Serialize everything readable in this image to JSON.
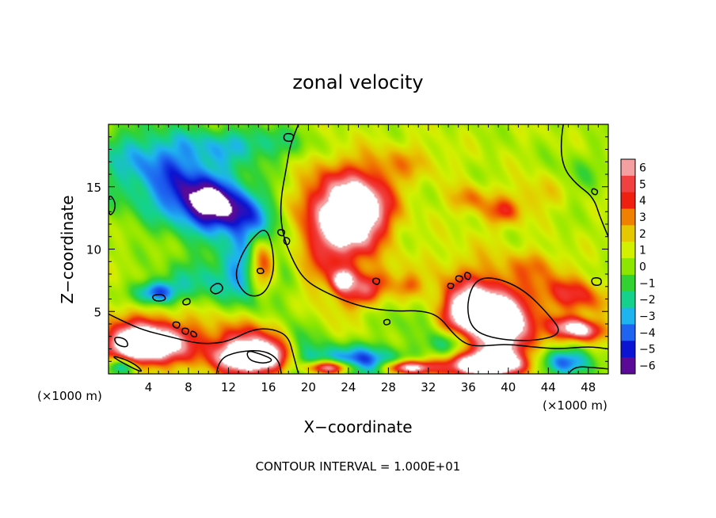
{
  "chart_data": {
    "type": "heatmap",
    "title": "zonal velocity",
    "xlabel": "X−coordinate",
    "ylabel": "Z−coordinate",
    "x_unit_left": "(×1000 m)",
    "x_unit_right": "(×1000 m)",
    "footer": "CONTOUR INTERVAL = 1.000E+01",
    "xlim": [
      0,
      50
    ],
    "ylim": [
      0,
      20
    ],
    "x_ticks": [
      4,
      8,
      12,
      16,
      20,
      24,
      28,
      32,
      36,
      40,
      44,
      48
    ],
    "x_tick_labels": [
      "4",
      "8",
      "12",
      "16",
      "20",
      "24",
      "28",
      "32",
      "36",
      "40",
      "44",
      "48"
    ],
    "y_ticks": [
      5,
      10,
      15
    ],
    "y_tick_labels": [
      "5",
      "10",
      "15"
    ],
    "colorbar": {
      "min": -6,
      "max": 6,
      "levels": [
        6,
        5,
        4,
        3,
        2,
        1,
        0,
        -1,
        -2,
        -3,
        -4,
        -5,
        -6
      ],
      "labels": [
        "6",
        "5",
        "4",
        "3",
        "2",
        "1",
        "0",
        "−1",
        "−2",
        "−3",
        "−4",
        "−5",
        "−6"
      ],
      "colors": [
        "#f4a0a0",
        "#f04040",
        "#f02010",
        "#f08000",
        "#e6c800",
        "#d2f000",
        "#8ce600",
        "#32d232",
        "#14d28c",
        "#1eb4f0",
        "#1e64f0",
        "#0a14d2",
        "#5a0a96"
      ]
    },
    "grid": false,
    "saturation_color": "#ffffff",
    "blobs": [
      {
        "x": 25,
        "y": 12.8,
        "rx": 3.6,
        "ry": 2.7,
        "rot": 35,
        "v": 6.2
      },
      {
        "x": 22.5,
        "y": 11.5,
        "rx": 5.5,
        "ry": 4.5,
        "rot": 40,
        "v": 3.5
      },
      {
        "x": 22.5,
        "y": 14,
        "rx": 3.5,
        "ry": 3,
        "rot": 0,
        "v": 2.5
      },
      {
        "x": 23.5,
        "y": 7.5,
        "rx": 1.2,
        "ry": 1,
        "rot": 0,
        "v": 6.2
      },
      {
        "x": 26,
        "y": 6.8,
        "rx": 3,
        "ry": 1.3,
        "rot": 20,
        "v": 3.5
      },
      {
        "x": 30,
        "y": 7,
        "rx": 1.3,
        "ry": 1,
        "rot": 0,
        "v": 2.5
      },
      {
        "x": 38.2,
        "y": 4.6,
        "rx": 3.5,
        "ry": 1.7,
        "rot": -20,
        "v": 8
      },
      {
        "x": 38.5,
        "y": 5,
        "rx": 5.5,
        "ry": 3.8,
        "rot": -20,
        "v": 4.5
      },
      {
        "x": 35,
        "y": 4.5,
        "rx": 2.5,
        "ry": 1.6,
        "rot": 0,
        "v": 3
      },
      {
        "x": 47,
        "y": 3.6,
        "rx": 2.5,
        "ry": 0.9,
        "rot": -5,
        "v": 7
      },
      {
        "x": 46.5,
        "y": 6.3,
        "rx": 4,
        "ry": 1.5,
        "rot": -10,
        "v": 3.5
      },
      {
        "x": 45,
        "y": 0.9,
        "rx": 3.5,
        "ry": 1.2,
        "rot": 0,
        "v": -5
      },
      {
        "x": 38,
        "y": 0.7,
        "rx": 4,
        "ry": 0.9,
        "rot": 0,
        "v": 8
      },
      {
        "x": 37.5,
        "y": 1.3,
        "rx": 5,
        "ry": 1.5,
        "rot": 0,
        "v": 3
      },
      {
        "x": 14.5,
        "y": 1.3,
        "rx": 3.5,
        "ry": 1.2,
        "rot": 0,
        "v": 8
      },
      {
        "x": 14.5,
        "y": 2.2,
        "rx": 5,
        "ry": 2.3,
        "rot": 0,
        "v": 4.5
      },
      {
        "x": 3.5,
        "y": 2.3,
        "rx": 3.5,
        "ry": 1.4,
        "rot": 0,
        "v": 8
      },
      {
        "x": 4,
        "y": 2.8,
        "rx": 5.5,
        "ry": 2.3,
        "rot": 0,
        "v": 4
      },
      {
        "x": 1.3,
        "y": 0.6,
        "rx": 1.6,
        "ry": 0.8,
        "rot": 0,
        "v": -5
      },
      {
        "x": 24.5,
        "y": 1,
        "rx": 6,
        "ry": 1.4,
        "rot": 0,
        "v": -5
      },
      {
        "x": 22,
        "y": 0.5,
        "rx": 2.5,
        "ry": 0.6,
        "rot": 0,
        "v": 8
      },
      {
        "x": 30,
        "y": 0.5,
        "rx": 2.5,
        "ry": 0.6,
        "rot": 0,
        "v": 8
      },
      {
        "x": 15.3,
        "y": 8.8,
        "rx": 1.6,
        "ry": 2.4,
        "rot": 10,
        "v": 8.5
      },
      {
        "x": 15,
        "y": 9,
        "rx": 2.8,
        "ry": 3.8,
        "rot": 10,
        "v": -5.5
      },
      {
        "x": 7,
        "y": 15,
        "rx": 9,
        "ry": 4,
        "rot": -15,
        "v": -3.5
      },
      {
        "x": 10.5,
        "y": 13.5,
        "rx": 4,
        "ry": 2,
        "rot": -10,
        "v": -5.5
      },
      {
        "x": 6,
        "y": 17.5,
        "rx": 6,
        "ry": 2.5,
        "rot": 0,
        "v": -1.5
      },
      {
        "x": 4.8,
        "y": 6.5,
        "rx": 2.2,
        "ry": 1,
        "rot": 0,
        "v": -5
      },
      {
        "x": 10,
        "y": 7.5,
        "rx": 4.5,
        "ry": 2,
        "rot": 0,
        "v": -2.5
      },
      {
        "x": 14.5,
        "y": 18.5,
        "rx": 6,
        "ry": 1.5,
        "rot": 0,
        "v": -2.5
      },
      {
        "x": 19,
        "y": 2.5,
        "rx": 2,
        "ry": 2.5,
        "rot": 0,
        "v": -3
      },
      {
        "x": 34,
        "y": 2.4,
        "rx": 2,
        "ry": 1.3,
        "rot": 0,
        "v": -4
      },
      {
        "x": 39.5,
        "y": 13,
        "rx": 2,
        "ry": 1.2,
        "rot": 0,
        "v": 3
      },
      {
        "x": 36,
        "y": 14,
        "rx": 2,
        "ry": 1.2,
        "rot": 0,
        "v": 2.5
      },
      {
        "x": 43,
        "y": 14.5,
        "rx": 3,
        "ry": 1.5,
        "rot": 0,
        "v": 1.5
      },
      {
        "x": 43,
        "y": 8.8,
        "rx": 3,
        "ry": 1.2,
        "rot": 0,
        "v": 1.5
      },
      {
        "x": 30,
        "y": 17,
        "rx": 4,
        "ry": 1.5,
        "rot": 0,
        "v": 1.5
      },
      {
        "x": 47,
        "y": 16,
        "rx": 3,
        "ry": 2,
        "rot": 0,
        "v": -1
      },
      {
        "x": 31,
        "y": 4.5,
        "rx": 3,
        "ry": 1.5,
        "rot": 0,
        "v": -1.5
      }
    ],
    "contours": [
      {
        "closed": false,
        "points": [
          [
            19,
            20
          ],
          [
            18.2,
            18.5
          ],
          [
            17.8,
            16.5
          ],
          [
            17.2,
            14
          ],
          [
            17.3,
            11.5
          ],
          [
            18.3,
            9.3
          ],
          [
            19.5,
            7.6
          ],
          [
            21.5,
            6.6
          ],
          [
            25,
            5.4
          ],
          [
            28.5,
            5
          ],
          [
            31,
            5.1
          ],
          [
            33,
            4.7
          ],
          [
            34.5,
            3.2
          ],
          [
            35.7,
            2.4
          ],
          [
            37,
            2.2
          ],
          [
            40,
            2.4
          ],
          [
            43,
            2.1
          ],
          [
            45.5,
            2
          ],
          [
            48,
            2.2
          ],
          [
            50,
            2
          ]
        ]
      },
      {
        "closed": false,
        "points": [
          [
            45.5,
            20
          ],
          [
            45.2,
            18.5
          ],
          [
            45.5,
            16.5
          ],
          [
            46.8,
            15.2
          ],
          [
            48.5,
            14.2
          ],
          [
            49.2,
            12.5
          ],
          [
            50,
            11
          ]
        ]
      },
      {
        "closed": true,
        "points": [
          [
            35.8,
            5.5
          ],
          [
            36.6,
            7.5
          ],
          [
            38.5,
            7.8
          ],
          [
            41.5,
            6.8
          ],
          [
            44,
            4.8
          ],
          [
            45.5,
            3.2
          ],
          [
            42.5,
            2.6
          ],
          [
            38.5,
            2.8
          ],
          [
            36.3,
            3.6
          ]
        ]
      },
      {
        "closed": true,
        "points": [
          [
            12.6,
            7.7
          ],
          [
            13.2,
            9.4
          ],
          [
            14.3,
            10.8
          ],
          [
            15.7,
            11.8
          ],
          [
            16.4,
            10.3
          ],
          [
            16.6,
            8.2
          ],
          [
            15.6,
            6.3
          ],
          [
            13.8,
            6.2
          ]
        ]
      },
      {
        "closed": false,
        "points": [
          [
            0,
            4.8
          ],
          [
            1.5,
            4.2
          ],
          [
            3.5,
            3.5
          ],
          [
            6,
            3
          ],
          [
            8.5,
            2.5
          ],
          [
            10,
            2.4
          ],
          [
            12,
            2.6
          ],
          [
            14.5,
            3.6
          ],
          [
            16.5,
            3.6
          ],
          [
            18,
            3
          ],
          [
            18.5,
            1.5
          ],
          [
            19,
            0
          ]
        ]
      },
      {
        "closed": false,
        "points": [
          [
            10.8,
            0
          ],
          [
            11,
            1.2
          ],
          [
            13,
            1.8
          ],
          [
            15.5,
            1.9
          ],
          [
            17,
            1.2
          ],
          [
            17.3,
            0
          ]
        ]
      },
      {
        "closed": true,
        "points": [
          [
            13.8,
            1.9
          ],
          [
            15.2,
            1.6
          ],
          [
            16.6,
            1.1
          ],
          [
            15.5,
            0.8
          ],
          [
            14,
            1.1
          ]
        ]
      },
      {
        "closed": false,
        "points": [
          [
            46,
            0
          ],
          [
            46.5,
            0.6
          ],
          [
            48.5,
            0.5
          ],
          [
            50,
            0.4
          ]
        ]
      },
      {
        "closed": true,
        "points": [
          [
            4.3,
            6.3
          ],
          [
            5.5,
            6.4
          ],
          [
            5.8,
            5.9
          ],
          [
            4.6,
            5.8
          ]
        ]
      },
      {
        "closed": true,
        "points": [
          [
            7.4,
            5.9
          ],
          [
            8.1,
            6.1
          ],
          [
            8.2,
            5.6
          ],
          [
            7.5,
            5.5
          ]
        ]
      },
      {
        "closed": true,
        "points": [
          [
            10,
            6.8
          ],
          [
            11,
            7.4
          ],
          [
            11.6,
            6.8
          ],
          [
            10.7,
            6.3
          ]
        ]
      },
      {
        "closed": true,
        "points": [
          [
            6.5,
            4.2
          ],
          [
            7.2,
            4.1
          ],
          [
            7,
            3.6
          ],
          [
            6.4,
            3.8
          ]
        ]
      },
      {
        "closed": true,
        "points": [
          [
            7.4,
            3.7
          ],
          [
            8.1,
            3.6
          ],
          [
            7.9,
            3.1
          ],
          [
            7.3,
            3.3
          ]
        ]
      },
      {
        "closed": true,
        "points": [
          [
            8.3,
            3.5
          ],
          [
            8.9,
            3.2
          ],
          [
            8.7,
            2.9
          ],
          [
            8.2,
            3.1
          ]
        ]
      },
      {
        "closed": true,
        "points": [
          [
            17,
            11.6
          ],
          [
            17.7,
            11.5
          ],
          [
            17.5,
            11
          ],
          [
            16.9,
            11.2
          ]
        ]
      },
      {
        "closed": true,
        "points": [
          [
            17.6,
            11
          ],
          [
            18.2,
            10.8
          ],
          [
            18,
            10.3
          ],
          [
            17.5,
            10.5
          ]
        ]
      },
      {
        "closed": true,
        "points": [
          [
            17.6,
            19.3
          ],
          [
            18.6,
            19.2
          ],
          [
            18.4,
            18.6
          ],
          [
            17.5,
            18.7
          ]
        ]
      },
      {
        "closed": true,
        "points": [
          [
            26.5,
            7.7
          ],
          [
            27.2,
            7.6
          ],
          [
            27,
            7.1
          ],
          [
            26.4,
            7.3
          ]
        ]
      },
      {
        "closed": true,
        "points": [
          [
            34.8,
            7.9
          ],
          [
            35.5,
            7.8
          ],
          [
            35.3,
            7.3
          ],
          [
            34.7,
            7.5
          ]
        ]
      },
      {
        "closed": true,
        "points": [
          [
            35.7,
            8.2
          ],
          [
            36.3,
            8
          ],
          [
            36.1,
            7.5
          ],
          [
            35.6,
            7.7
          ]
        ]
      },
      {
        "closed": true,
        "points": [
          [
            34,
            7.3
          ],
          [
            34.6,
            7.2
          ],
          [
            34.4,
            6.8
          ],
          [
            33.9,
            6.9
          ]
        ]
      },
      {
        "closed": true,
        "points": [
          [
            27.5,
            4.3
          ],
          [
            28.1,
            4.4
          ],
          [
            28.2,
            4
          ],
          [
            27.6,
            3.9
          ]
        ]
      },
      {
        "closed": true,
        "points": [
          [
            48.4,
            14.9
          ],
          [
            49,
            14.7
          ],
          [
            48.8,
            14.3
          ],
          [
            48.3,
            14.5
          ]
        ]
      },
      {
        "closed": true,
        "points": [
          [
            48.3,
            7.7
          ],
          [
            49.3,
            7.7
          ],
          [
            49.3,
            7.1
          ],
          [
            48.4,
            7.1
          ]
        ]
      },
      {
        "closed": true,
        "points": [
          [
            0.5,
            3
          ],
          [
            1.8,
            2.8
          ],
          [
            2,
            2.1
          ],
          [
            0.8,
            2.3
          ]
        ]
      },
      {
        "closed": true,
        "points": [
          [
            14.8,
            8.4
          ],
          [
            15.4,
            8.5
          ],
          [
            15.6,
            8.1
          ],
          [
            15,
            8
          ]
        ]
      },
      {
        "closed": true,
        "points": [
          [
            0,
            14.5
          ],
          [
            0.7,
            13.8
          ],
          [
            0.6,
            13
          ],
          [
            0,
            12.6
          ]
        ]
      },
      {
        "closed": true,
        "points": [
          [
            0,
            1.5
          ],
          [
            1.6,
            1.2
          ],
          [
            3,
            0.6
          ],
          [
            3.5,
            0
          ]
        ]
      }
    ]
  }
}
